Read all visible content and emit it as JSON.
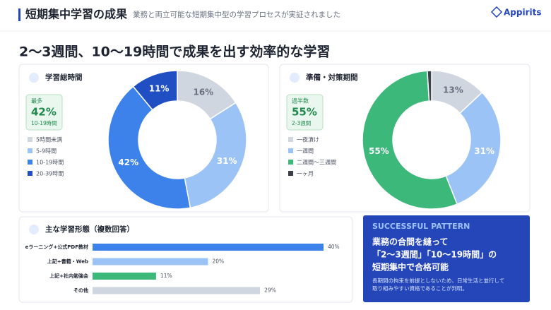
{
  "header": {
    "title": "短期集中学習の成果",
    "subtitle": "業務と両立可能な短期集中型の学習プロセスが実証されました",
    "logo": "Appirits"
  },
  "headline": "2〜3週間、10〜19時間で成果を出す効率的な学習",
  "chart_data": [
    {
      "type": "pie",
      "title": "学習総時間",
      "highlight": {
        "label": "最多",
        "value": "42%",
        "category": "10-19時間"
      },
      "categories": [
        "5時間未満",
        "5-9時間",
        "10-19時間",
        "20-39時間"
      ],
      "values": [
        16,
        31,
        42,
        11
      ],
      "value_labels": [
        "16%",
        "31%",
        "42%",
        "11%"
      ],
      "colors": [
        "#cfd6e0",
        "#9cc3f5",
        "#3d82ea",
        "#1f4fc2"
      ]
    },
    {
      "type": "pie",
      "title": "準備・対策期間",
      "highlight": {
        "label": "過半数",
        "value": "55%",
        "category": "2-3週間"
      },
      "categories": [
        "一夜漬け",
        "一週間",
        "二週間〜三週間",
        "一ヶ月"
      ],
      "values": [
        13,
        31,
        55,
        1
      ],
      "value_labels": [
        "13%",
        "31%",
        "55%",
        null
      ],
      "colors": [
        "#cfd6e0",
        "#9cc3f5",
        "#3cb87a",
        "#3a3f4a"
      ]
    },
    {
      "type": "bar",
      "title": "主な学習形態（複数回答）",
      "categories": [
        "eラーニング+公式PDF教材",
        "上記+書籍・Web",
        "上記+社内勉強会",
        "その他"
      ],
      "values": [
        40,
        20,
        11,
        29
      ],
      "value_labels": [
        "40%",
        "20%",
        "11%",
        "29%"
      ],
      "colors": [
        "#3d82ea",
        "#9cc3f5",
        "#3cb87a",
        "#d0d6df"
      ]
    }
  ],
  "pattern": {
    "tag": "SUCCESSFUL PATTERN",
    "lines": [
      "業務の合間を縫って",
      "「2〜3週間」「10〜19時間」の",
      "短期集中で合格可能"
    ],
    "body": [
      "長期間の拘束を前提としないため、日常生活と並行して",
      "取り組みやすい資格であることが判明。"
    ]
  }
}
